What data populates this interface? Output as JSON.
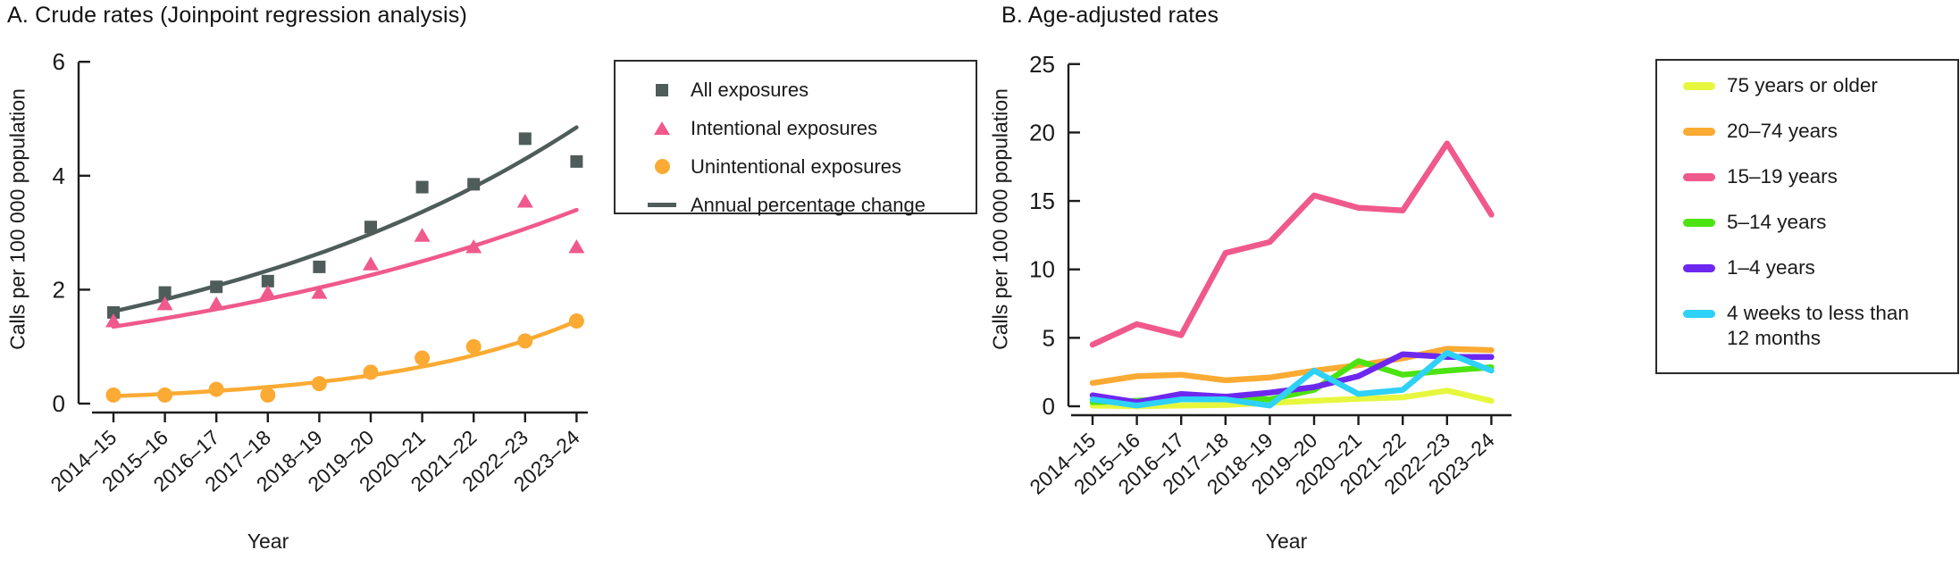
{
  "figure": {
    "axis_color": "#1c1c1c",
    "background_color": "#ffffff",
    "panels": [
      {
        "id": "A",
        "title": "A. Crude rates (Joinpoint regression analysis)",
        "y_axis_label": "Calls per 100 000 population",
        "x_axis_label": "Year",
        "legend": [
          {
            "label": "All exposures",
            "marker": "square",
            "color": "#4e5c5a"
          },
          {
            "label": "Intentional exposures",
            "marker": "triangle",
            "color": "#f0598c"
          },
          {
            "label": "Unintentional exposures",
            "marker": "circle",
            "color": "#fbaa33"
          },
          {
            "label": "Annual percentage change",
            "marker": "line",
            "color": "#4e5c5a"
          }
        ]
      },
      {
        "id": "B",
        "title": "B. Age-adjusted rates",
        "y_axis_label": "Calls per 100 000 population",
        "x_axis_label": "Year",
        "legend": [
          {
            "label": "75 years or older",
            "marker": "line",
            "color": "#e6f73d"
          },
          {
            "label": "20–74 years",
            "marker": "line",
            "color": "#fbaa33"
          },
          {
            "label": "15–19 years",
            "marker": "line",
            "color": "#f0598c"
          },
          {
            "label": "5–14 years",
            "marker": "line",
            "color": "#4ce312"
          },
          {
            "label": "1–4 years",
            "marker": "line",
            "color": "#6d28f0"
          },
          {
            "label": "4 weeks to less than\n12 months",
            "marker": "line",
            "color": "#2ed1f7"
          }
        ]
      }
    ]
  },
  "chart_data": [
    {
      "type": "scatter",
      "title": "A. Crude rates (Joinpoint regression analysis)",
      "xlabel": "Year",
      "ylabel": "Calls per 100 000 population",
      "categories": [
        "2014–15",
        "2015–16",
        "2016–17",
        "2017–18",
        "2018–19",
        "2019–20",
        "2020–21",
        "2021–22",
        "2022–23",
        "2023–24"
      ],
      "ylim": [
        0,
        6
      ],
      "yticks": [
        0,
        2,
        4,
        6
      ],
      "grid": false,
      "legend_position": "right-top",
      "series": [
        {
          "name": "All exposures",
          "marker": "square",
          "color": "#4e5c5a",
          "values": [
            1.6,
            1.95,
            2.05,
            2.15,
            2.4,
            3.1,
            3.8,
            3.85,
            4.65,
            4.25
          ]
        },
        {
          "name": "Intentional exposures",
          "marker": "triangle",
          "color": "#f0598c",
          "values": [
            1.45,
            1.75,
            1.75,
            1.95,
            1.95,
            2.45,
            2.95,
            2.75,
            3.55,
            2.75
          ]
        },
        {
          "name": "Unintentional exposures",
          "marker": "circle",
          "color": "#fbaa33",
          "values": [
            0.15,
            0.15,
            0.25,
            0.15,
            0.35,
            0.55,
            0.8,
            1.0,
            1.1,
            1.45
          ]
        }
      ],
      "trend_lines": [
        {
          "name": "Annual percentage change",
          "for_series": "All exposures",
          "color": "#4e5c5a",
          "shape": "exponential",
          "start": 1.62,
          "end": 4.85
        },
        {
          "name": "Annual percentage change",
          "for_series": "Intentional exposures",
          "color": "#f0598c",
          "shape": "exponential",
          "start": 1.35,
          "end": 3.4
        },
        {
          "name": "Annual percentage change",
          "for_series": "Unintentional exposures",
          "color": "#fbaa33",
          "shape": "exponential",
          "start": 0.13,
          "end": 1.45
        }
      ]
    },
    {
      "type": "line",
      "title": "B. Age-adjusted rates",
      "xlabel": "Year",
      "ylabel": "Calls per 100 000 population",
      "categories": [
        "2014–15",
        "2015–16",
        "2016–17",
        "2017–18",
        "2018–19",
        "2019–20",
        "2020–21",
        "2021–22",
        "2022–23",
        "2023–24"
      ],
      "ylim": [
        0,
        25
      ],
      "yticks": [
        0,
        5,
        10,
        15,
        20,
        25
      ],
      "grid": false,
      "legend_position": "right-top",
      "series": [
        {
          "name": "75 years or older",
          "color": "#e6f73d",
          "values": [
            0.05,
            0.0,
            0.05,
            0.1,
            0.25,
            0.4,
            0.55,
            0.65,
            1.15,
            0.4
          ]
        },
        {
          "name": "20–74 years",
          "color": "#fbaa33",
          "values": [
            1.7,
            2.2,
            2.3,
            1.9,
            2.1,
            2.6,
            3.0,
            3.5,
            4.2,
            4.1
          ]
        },
        {
          "name": "15–19 years",
          "color": "#f0598c",
          "values": [
            4.5,
            6.0,
            5.2,
            11.2,
            12.0,
            15.4,
            14.5,
            14.3,
            19.2,
            14.0
          ]
        },
        {
          "name": "5–14 years",
          "color": "#4ce312",
          "values": [
            0.3,
            0.4,
            0.6,
            0.7,
            0.5,
            1.2,
            3.3,
            2.3,
            2.6,
            2.85
          ]
        },
        {
          "name": "1–4 years",
          "color": "#6d28f0",
          "values": [
            0.8,
            0.3,
            0.9,
            0.7,
            1.0,
            1.4,
            2.2,
            3.8,
            3.6,
            3.6
          ]
        },
        {
          "name": "4 weeks to less than 12 months",
          "color": "#2ed1f7",
          "values": [
            0.5,
            0.05,
            0.5,
            0.5,
            0.05,
            2.6,
            0.9,
            1.2,
            3.9,
            2.6
          ]
        }
      ]
    }
  ]
}
